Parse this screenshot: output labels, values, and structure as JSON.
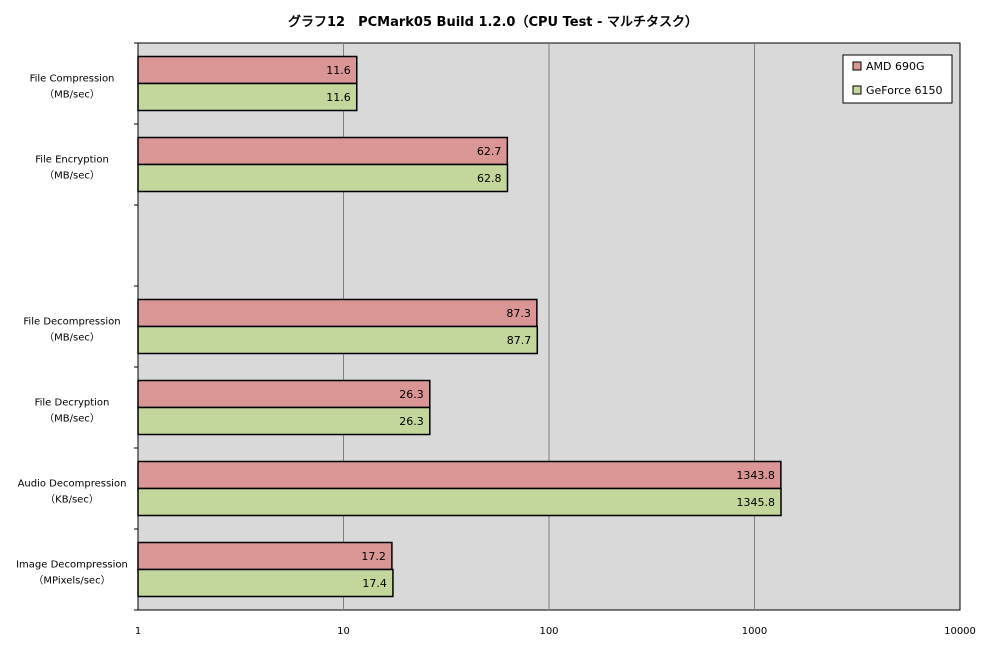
{
  "chart_data": {
    "type": "bar",
    "orientation": "horizontal",
    "title": "グラフ12　PCMark05 Build 1.2.0（CPU Test - マルチタスク）",
    "xscale": "log",
    "xlim": [
      1,
      10000
    ],
    "xticks": [
      "1",
      "10",
      "100",
      "1000",
      "10000"
    ],
    "grid": true,
    "legend_position": "top-right",
    "categories": [
      {
        "line1": "File Compression",
        "line2": "（MB/sec）"
      },
      {
        "line1": "File Encryption",
        "line2": "（MB/sec）"
      },
      {
        "line1": "",
        "line2": ""
      },
      {
        "line1": "File Decompression",
        "line2": "（MB/sec）"
      },
      {
        "line1": "File Decryption",
        "line2": "（MB/sec）"
      },
      {
        "line1": "Audio Decompression",
        "line2": "（KB/sec）"
      },
      {
        "line1": "Image Decompression",
        "line2": "（MPixels/sec）"
      }
    ],
    "series": [
      {
        "name": "AMD 690G",
        "color": "#d99694",
        "values": [
          11.6,
          62.7,
          null,
          87.3,
          26.3,
          1343.8,
          17.2
        ],
        "labels": [
          "11.6",
          "62.7",
          "",
          "87.3",
          "26.3",
          "1343.8",
          "17.2"
        ]
      },
      {
        "name": "GeForce 6150",
        "color": "#c3d69b",
        "values": [
          11.6,
          62.8,
          null,
          87.7,
          26.3,
          1345.8,
          17.4
        ],
        "labels": [
          "11.6",
          "62.8",
          "",
          "87.7",
          "26.3",
          "1345.8",
          "17.4"
        ]
      }
    ]
  }
}
